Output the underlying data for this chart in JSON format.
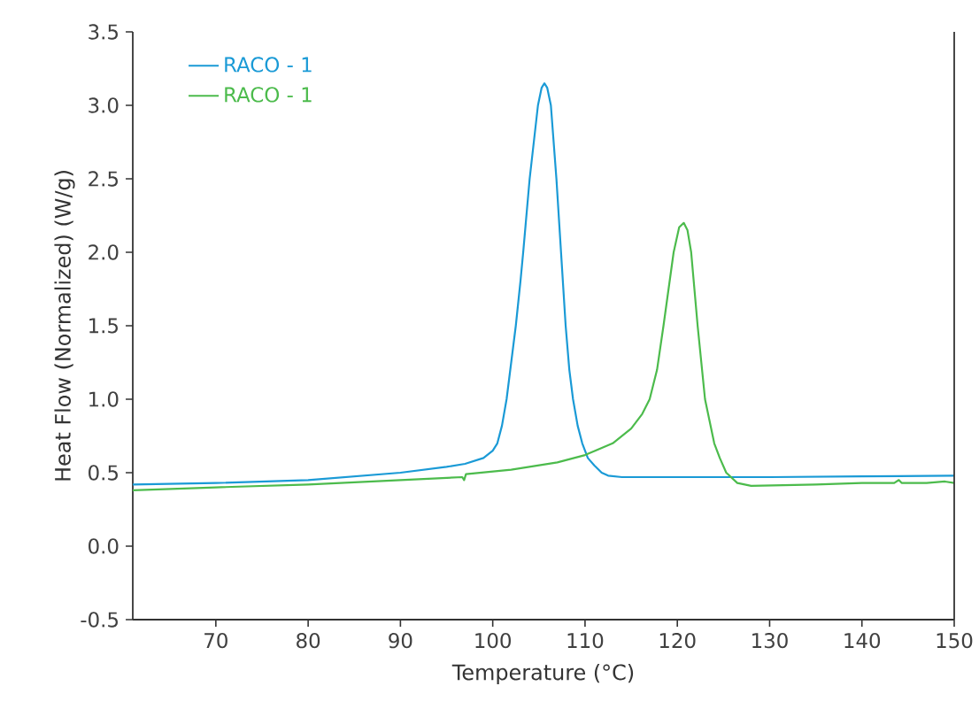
{
  "chart_data": {
    "type": "line",
    "xlabel": "Temperature (°C)",
    "ylabel": "Heat Flow (Normalized) (W/g)",
    "xlim": [
      61,
      150
    ],
    "ylim": [
      -0.5,
      3.5
    ],
    "xticks": [
      70,
      80,
      90,
      100,
      110,
      120,
      130,
      140,
      150
    ],
    "yticks": [
      {
        "value": -0.5,
        "label": "-0.5"
      },
      {
        "value": 0,
        "label": "0.0"
      },
      {
        "value": 0.5,
        "label": "0.5"
      },
      {
        "value": 1,
        "label": "1.0"
      },
      {
        "value": 1.5,
        "label": "1.5"
      },
      {
        "value": 2,
        "label": "2.0"
      },
      {
        "value": 2.5,
        "label": "2.5"
      },
      {
        "value": 3,
        "label": "3.0"
      },
      {
        "value": 3.5,
        "label": "3.5"
      }
    ],
    "legend": "top left",
    "grid": false,
    "marker": "none",
    "line_style": "solid",
    "series": [
      {
        "name": "RACO - 1",
        "color": "#1a9ad6",
        "x": [
          61,
          70,
          80,
          90,
          95,
          97,
          99,
          100,
          100.5,
          101,
          101.5,
          102,
          102.5,
          103,
          103.3,
          104,
          104.9,
          105.3,
          105.6,
          105.9,
          106.3,
          106.9,
          107.4,
          107.9,
          108.3,
          108.7,
          109.2,
          109.7,
          110.3,
          111,
          111.8,
          112.5,
          114,
          120,
          130,
          140,
          150
        ],
        "values": [
          0.42,
          0.43,
          0.45,
          0.5,
          0.54,
          0.56,
          0.6,
          0.65,
          0.7,
          0.82,
          1.0,
          1.25,
          1.5,
          1.8,
          2.0,
          2.5,
          3.0,
          3.12,
          3.15,
          3.12,
          3.0,
          2.5,
          2.0,
          1.5,
          1.2,
          1.0,
          0.82,
          0.7,
          0.6,
          0.55,
          0.5,
          0.48,
          0.47,
          0.47,
          0.47,
          0.475,
          0.48
        ]
      },
      {
        "name": "RACO - 1",
        "color": "#4cbb4c",
        "x": [
          61,
          70,
          80,
          90,
          96.7,
          96.9,
          97.1,
          102,
          107,
          110,
          113,
          115,
          116.2,
          117,
          117.8,
          118.5,
          119.6,
          120.2,
          120.7,
          121.1,
          121.5,
          122.2,
          123,
          124,
          124.6,
          125.3,
          126.5,
          128,
          135,
          140,
          143.5,
          144,
          144.3,
          147,
          149,
          150
        ],
        "values": [
          0.38,
          0.4,
          0.42,
          0.45,
          0.47,
          0.45,
          0.49,
          0.52,
          0.57,
          0.62,
          0.7,
          0.8,
          0.9,
          1.0,
          1.2,
          1.5,
          2.0,
          2.17,
          2.2,
          2.15,
          2.0,
          1.5,
          1.0,
          0.7,
          0.6,
          0.5,
          0.43,
          0.41,
          0.42,
          0.43,
          0.43,
          0.45,
          0.43,
          0.43,
          0.44,
          0.43
        ]
      }
    ]
  }
}
